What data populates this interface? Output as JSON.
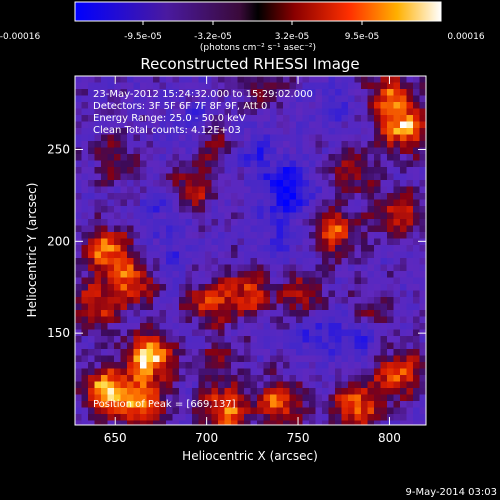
{
  "colorbar": {
    "tick_labels": [
      "-0.00016",
      "-9.5e-05",
      "-3.2e-05",
      "3.2e-05",
      "9.5e-05",
      "0.00016"
    ],
    "unit_label": "(photons cm⁻² s⁻¹ asec⁻²)",
    "range": [
      -0.00016,
      0.00016
    ]
  },
  "chart_data": {
    "type": "heatmap",
    "title": "Reconstructed RHESSI Image",
    "xlabel": "Heliocentric X (arcsec)",
    "ylabel": "Heliocentric Y (arcsec)",
    "xlim": [
      628,
      820
    ],
    "ylim": [
      100,
      290
    ],
    "xticks": [
      650,
      700,
      750,
      800
    ],
    "yticks": [
      150,
      200,
      250
    ],
    "header_lines": [
      "23-May-2012 15:24:32.000 to 15:29:02.000",
      "Detectors: 3F 5F 6F 7F 8F 9F, Att 0",
      "Energy Range: 25.0 - 50.0 keV",
      "Clean     Total counts: 4.12E+03"
    ],
    "peak_label": "Position of Peak = [669,137]",
    "peak": [
      669,
      137
    ],
    "grid": false,
    "colormap": "blue-purple-red-yellow-white",
    "sources": [
      {
        "x": 669,
        "y": 137,
        "amp": 1.0
      },
      {
        "x": 645,
        "y": 118,
        "amp": 0.9
      },
      {
        "x": 665,
        "y": 112,
        "amp": 0.7
      },
      {
        "x": 710,
        "y": 108,
        "amp": 0.75
      },
      {
        "x": 740,
        "y": 112,
        "amp": 0.7
      },
      {
        "x": 782,
        "y": 110,
        "amp": 0.75
      },
      {
        "x": 805,
        "y": 128,
        "amp": 0.7
      },
      {
        "x": 808,
        "y": 262,
        "amp": 0.85
      },
      {
        "x": 800,
        "y": 280,
        "amp": 0.6
      },
      {
        "x": 805,
        "y": 215,
        "amp": 0.6
      },
      {
        "x": 770,
        "y": 205,
        "amp": 0.65
      },
      {
        "x": 645,
        "y": 195,
        "amp": 0.75
      },
      {
        "x": 660,
        "y": 178,
        "amp": 0.65
      },
      {
        "x": 640,
        "y": 165,
        "amp": 0.55
      },
      {
        "x": 700,
        "y": 165,
        "amp": 0.65
      },
      {
        "x": 722,
        "y": 172,
        "amp": 0.6
      },
      {
        "x": 752,
        "y": 170,
        "amp": 0.5
      },
      {
        "x": 692,
        "y": 228,
        "amp": 0.5
      },
      {
        "x": 705,
        "y": 255,
        "amp": 0.45
      },
      {
        "x": 732,
        "y": 285,
        "amp": 0.35
      },
      {
        "x": 650,
        "y": 245,
        "amp": 0.35
      },
      {
        "x": 790,
        "y": 160,
        "amp": 0.45
      },
      {
        "x": 705,
        "y": 138,
        "amp": 0.4
      },
      {
        "x": 780,
        "y": 238,
        "amp": 0.4
      }
    ],
    "negative_sources": [
      {
        "x": 744,
        "y": 228,
        "amp": 1.0
      },
      {
        "x": 725,
        "y": 250,
        "amp": 0.5
      },
      {
        "x": 692,
        "y": 262,
        "amp": 0.5
      },
      {
        "x": 678,
        "y": 218,
        "amp": 0.45
      },
      {
        "x": 740,
        "y": 200,
        "amp": 0.45
      },
      {
        "x": 785,
        "y": 150,
        "amp": 0.65
      },
      {
        "x": 760,
        "y": 150,
        "amp": 0.5
      },
      {
        "x": 698,
        "y": 150,
        "amp": 0.4
      },
      {
        "x": 680,
        "y": 188,
        "amp": 0.35
      },
      {
        "x": 770,
        "y": 275,
        "amp": 0.35
      }
    ]
  },
  "footer": {
    "date": "9-May-2014 03:03"
  }
}
